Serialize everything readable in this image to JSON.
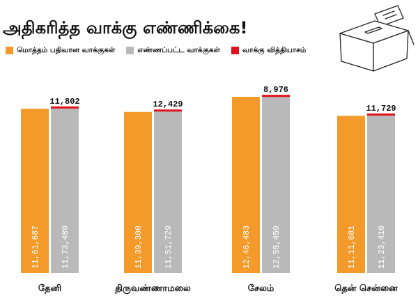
{
  "title": "அதிகரித்த வாக்கு எண்ணிக்கை!",
  "legend": [
    {
      "label": "மொத்தம் பதிவான வாக்குகள்",
      "color": "#F39A2B"
    },
    {
      "label": "எண்ணப்பட்ட வாக்குகள்",
      "color": "#B9B9B9"
    },
    {
      "label": "வாக்கு வித்தியாசம்",
      "color": "#E0121D"
    }
  ],
  "chart_data": {
    "type": "bar",
    "title": "அதிகரித்த வாக்கு எண்ணிக்கை!",
    "categories": [
      "தேனி",
      "திருவண்ணாமலை",
      "சேலம்",
      "தென் சென்னை"
    ],
    "series": [
      {
        "name": "மொத்தம் பதிவான வாக்குகள்",
        "color": "#F39A2B",
        "values": [
          1161687,
          1139300,
          1246483,
          1111681
        ],
        "labels": [
          "11,61,687",
          "11,39,300",
          "12,46,483",
          "11,11,681"
        ]
      },
      {
        "name": "எண்ணப்பட்ட வாக்குகள்",
        "color": "#B9B9B9",
        "values": [
          1173489,
          1151729,
          1255459,
          1123410
        ],
        "labels": [
          "11,73,489",
          "11,51,729",
          "12,55,459",
          "11,23,410"
        ]
      },
      {
        "name": "வாக்கு வித்தியாசம்",
        "color": "#E0121D",
        "values": [
          11802,
          12429,
          8976,
          11729
        ],
        "labels": [
          "11,802",
          "12,429",
          "8,976",
          "11,729"
        ]
      }
    ],
    "ylim": [
      0,
      1300000
    ],
    "grid": false,
    "legend_position": "top-left"
  }
}
